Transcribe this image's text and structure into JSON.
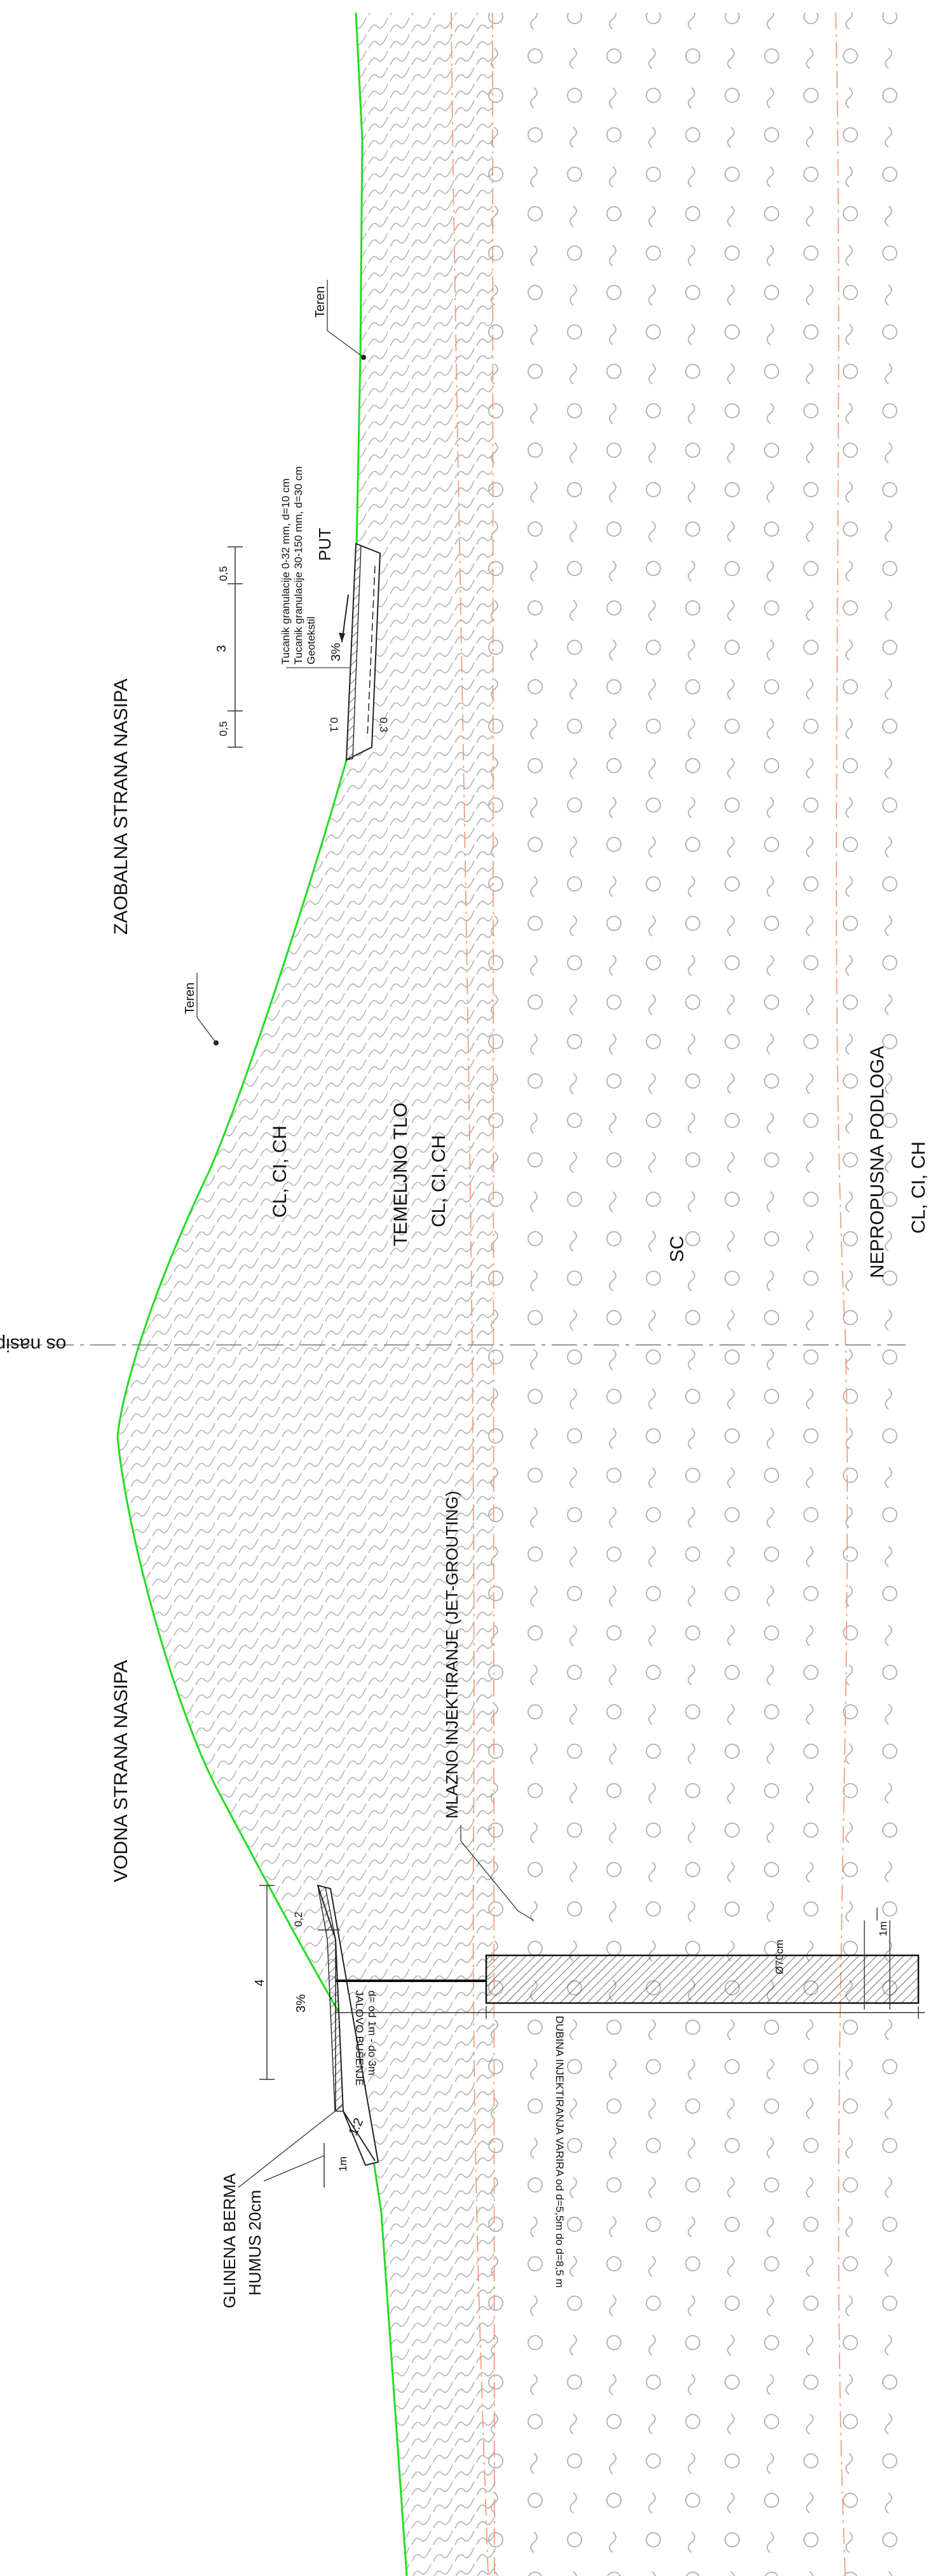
{
  "sides": {
    "landside": "ZAOBALNA STRANA NASIPA",
    "waterside": "VODNA STRANA NASIPA"
  },
  "axis_label": "os nasipa",
  "soils": {
    "embankment": "CL, CI, CH",
    "foundation_title": "TEMELJNO TLO",
    "foundation": "CL, CI, CH",
    "middle_layer": "SC",
    "impermeable_title": "NEPROPUSNA PODLOGA",
    "impermeable": "CL, CI, CH"
  },
  "terrain_labels": [
    "Teren",
    "Teren"
  ],
  "road": {
    "label": "PUT",
    "layers": [
      "Tucanik granulacije 0-32 mm, d=10 cm",
      "Tucanik granulacije 30-150 mm, d=30 cm",
      "Geotekstil"
    ],
    "slope": "3%",
    "dims": [
      "0,5",
      "3",
      "0,5"
    ],
    "thickness": [
      "0,1",
      "0,3"
    ]
  },
  "berm": {
    "labels": [
      "GLINENA BERMA",
      "HUMUS 20cm"
    ],
    "width": "4",
    "slope": "3%",
    "thickness": "0,2",
    "ratio": "1:2",
    "offset": "1m"
  },
  "grouting": {
    "label": "MLAZNO INJEKTIRANJE (JET-GROUTING)",
    "diameter": "Ø70cm",
    "empty_drilling": "JALOVO BUŠENJE",
    "empty_depth": "d= od 1m - do 3m",
    "depth_note": "DUBINA INJEKTIRANJA VARIRA od d=5,5m do d=8,5 m",
    "toe": "1m"
  },
  "colors": {
    "terrain_line": "#22dd22",
    "layer_boundary": "#f0a07a",
    "hatch": "#b5b5b5",
    "ink": "#111111"
  }
}
